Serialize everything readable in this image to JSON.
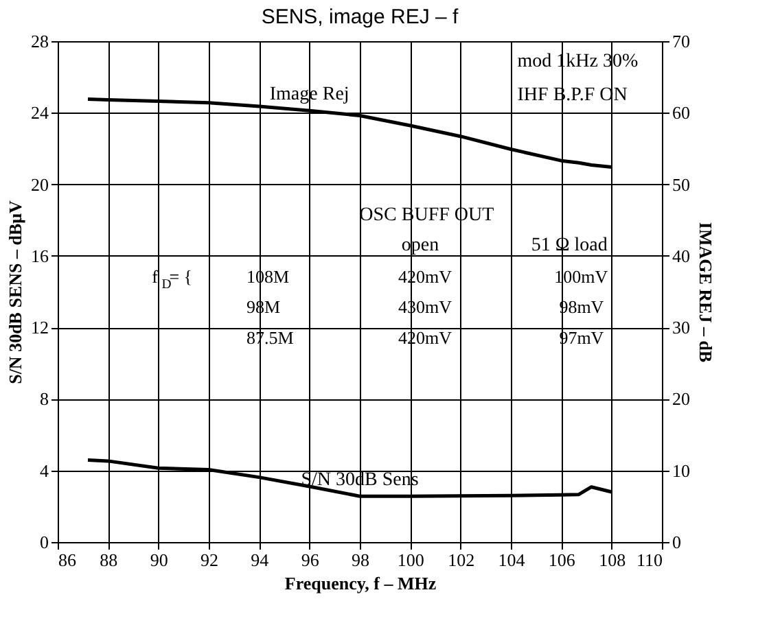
{
  "chart_data": {
    "type": "line",
    "title": "SENS, image REJ – f",
    "xlabel": "Frequency, f – MHz",
    "ylabel": "S/N 30dB SENS  –  dBμV",
    "y2label": "IMAGE REJ  –  dB",
    "x": [
      87.2,
      88,
      90,
      92,
      94,
      96,
      98,
      100,
      102,
      104,
      106,
      106.7,
      107.2,
      108
    ],
    "series": [
      {
        "name": "S/N 30dB Sens",
        "color": "#000000",
        "values": [
          4.58,
          4.53,
          4.13,
          4.05,
          3.62,
          3.11,
          2.56,
          2.56,
          2.58,
          2.6,
          2.64,
          2.66,
          3.08,
          2.8
        ]
      },
      {
        "name": "Image Rej",
        "color": "#000000",
        "axis": "y2",
        "values": [
          61.9,
          61.8,
          61.6,
          61.4,
          60.9,
          60.3,
          59.6,
          58.2,
          56.7,
          54.9,
          53.3,
          53.0,
          52.7,
          52.4
        ]
      }
    ],
    "xlim": [
      86,
      110
    ],
    "xticks": [
      86,
      88,
      90,
      92,
      94,
      96,
      98,
      100,
      102,
      104,
      106,
      108,
      110
    ],
    "ylim": [
      0,
      28
    ],
    "yticks": [
      0,
      4,
      8,
      12,
      16,
      20,
      24,
      28
    ],
    "y2lim": [
      0,
      70
    ],
    "y2ticks": [
      0,
      10,
      20,
      30,
      40,
      50,
      60,
      70
    ],
    "grid": true,
    "legend": false,
    "marker": "none",
    "line_style": "solid",
    "annotations": [
      "mod 1kHz 30%",
      "IHF B.P.F ON",
      "OSC BUFF OUT",
      "open",
      "51 Ω load",
      "f$_{D}$= {",
      "108M",
      "420mV",
      "100mV",
      "98M",
      "430mV",
      "98mV",
      "87.5M",
      "420mV",
      "97mV"
    ]
  }
}
